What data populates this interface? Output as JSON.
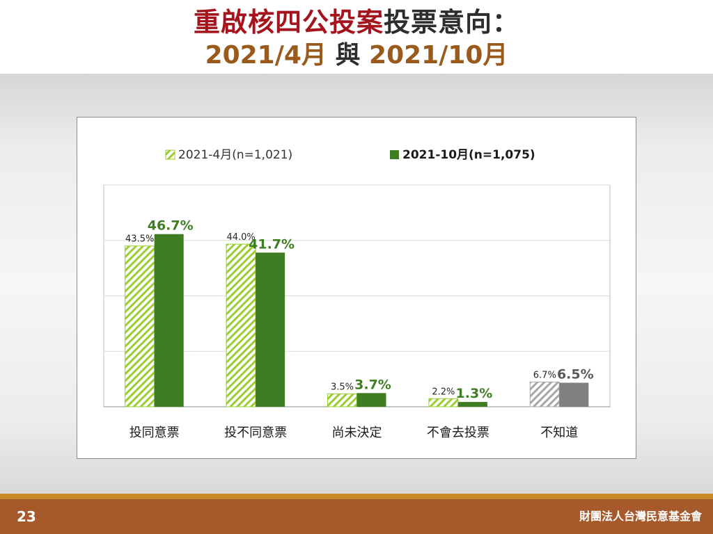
{
  "slide": {
    "title_part1": "重啟核四公投案",
    "title_part2": "投票意向：",
    "subtitle_date1": "2021/4月",
    "subtitle_join": " 與 ",
    "subtitle_date2": "2021/10月",
    "page_number": "23",
    "organization": "財團法人台灣民意基金會"
  },
  "colors": {
    "title_red": "#a5141c",
    "subtitle_brown": "#9a5a1c",
    "april_hatch": "#9acd32",
    "october_green": "#3f7d23",
    "unknown_gray": "#808080",
    "footer_brown": "#a65a2c",
    "footer_strip": "#c98a2a"
  },
  "chart_data": {
    "type": "bar",
    "categories": [
      "投同意票",
      "投不同意票",
      "尚未決定",
      "不會去投票",
      "不知道"
    ],
    "series": [
      {
        "name": "2021-4月(n=1,021)",
        "values": [
          43.5,
          44.0,
          3.5,
          2.2,
          6.7
        ],
        "labels": [
          "43.5%",
          "44.0%",
          "3.5%",
          "2.2%",
          "6.7%"
        ],
        "style": "hatched"
      },
      {
        "name": "2021-10月(n=1,075)",
        "values": [
          46.7,
          41.7,
          3.7,
          1.3,
          6.5
        ],
        "labels": [
          "46.7%",
          "41.7%",
          "3.7%",
          "1.3%",
          "6.5%"
        ],
        "style": "solid"
      }
    ],
    "gray_category": "不知道",
    "ylim": [
      0,
      60
    ],
    "gridlines": [
      15,
      30,
      45,
      60
    ],
    "grid": true,
    "legend_position": "top",
    "title": "",
    "xlabel": "",
    "ylabel": ""
  }
}
